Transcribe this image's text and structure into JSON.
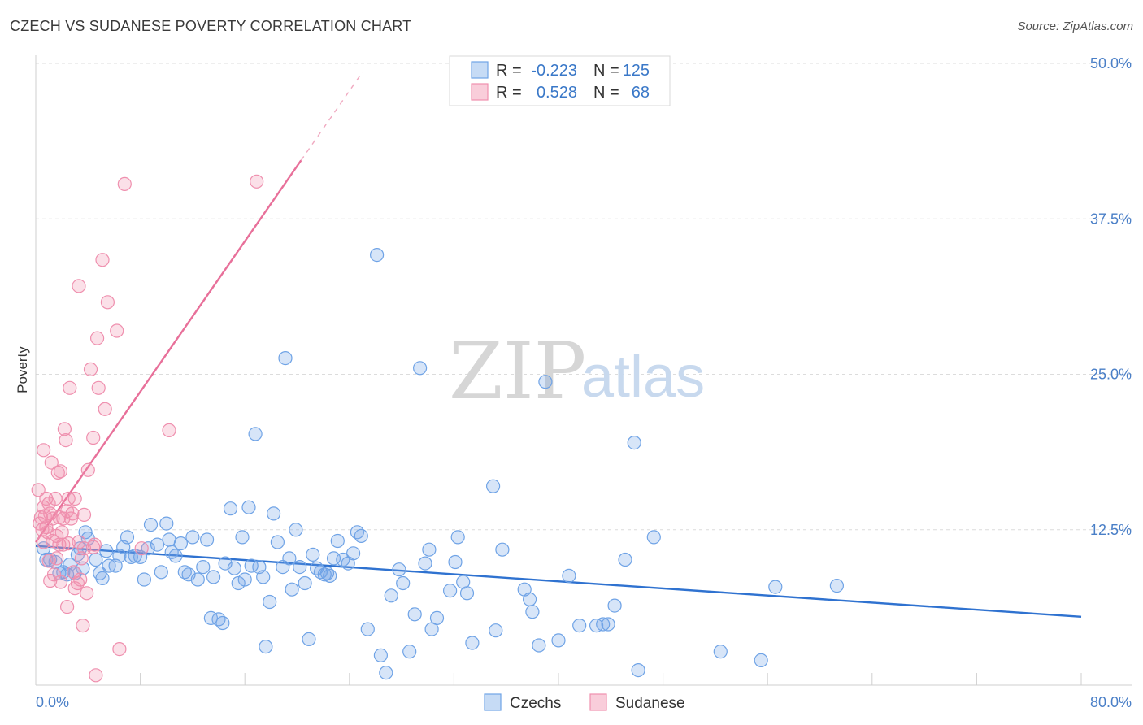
{
  "header": {
    "title": "CZECH VS SUDANESE POVERTY CORRELATION CHART",
    "source": "Source: ZipAtlas.com"
  },
  "watermark": {
    "zip": "ZIP",
    "atlas": "atlas"
  },
  "legend": {
    "rows": [
      {
        "r_label": "R =",
        "r_value": "-0.223",
        "n_label": "N =",
        "n_value": "125",
        "color": "#6fa3e6"
      },
      {
        "r_label": "R =",
        "r_value": "0.528",
        "n_label": "N =",
        "n_value": "68",
        "color": "#ef8fae"
      }
    ]
  },
  "bottom_legend": [
    {
      "label": "Czechs",
      "color": "#6fa3e6"
    },
    {
      "label": "Sudanese",
      "color": "#ef8fae"
    }
  ],
  "chart_data": {
    "type": "scatter",
    "title": "CZECH VS SUDANESE POVERTY CORRELATION CHART",
    "xlabel": "",
    "ylabel": "Poverty",
    "xlim": [
      0,
      80
    ],
    "ylim": [
      0,
      50
    ],
    "x_tick_labels": [
      "0.0%",
      "80.0%"
    ],
    "y_tick_labels": [
      "12.5%",
      "25.0%",
      "37.5%",
      "50.0%"
    ],
    "y_ticks": [
      12.5,
      25.0,
      37.5,
      50.0
    ],
    "grid": "horizontal dashed",
    "legend_position": "top-center",
    "series": [
      {
        "name": "Czechs",
        "color": "#6fa3e6",
        "trend": {
          "x": [
            0,
            80
          ],
          "y": [
            11.2,
            5.5
          ],
          "style": "solid"
        },
        "points": [
          [
            0.6,
            11.0
          ],
          [
            0.8,
            10.1
          ],
          [
            1.1,
            10.1
          ],
          [
            1.5,
            9.9
          ],
          [
            1.8,
            9.0
          ],
          [
            2.1,
            9.1
          ],
          [
            2.4,
            8.9
          ],
          [
            2.6,
            9.7
          ],
          [
            3.0,
            9.0
          ],
          [
            3.2,
            10.5
          ],
          [
            3.4,
            11.0
          ],
          [
            3.6,
            9.4
          ],
          [
            3.8,
            12.3
          ],
          [
            4.0,
            11.8
          ],
          [
            4.6,
            10.1
          ],
          [
            4.9,
            9.0
          ],
          [
            5.1,
            8.6
          ],
          [
            5.4,
            10.8
          ],
          [
            5.6,
            9.6
          ],
          [
            6.1,
            9.6
          ],
          [
            6.4,
            10.4
          ],
          [
            6.7,
            11.1
          ],
          [
            7.0,
            11.9
          ],
          [
            7.3,
            10.3
          ],
          [
            7.6,
            10.4
          ],
          [
            8.0,
            10.3
          ],
          [
            8.3,
            8.5
          ],
          [
            8.6,
            11.0
          ],
          [
            8.8,
            12.9
          ],
          [
            9.3,
            11.3
          ],
          [
            9.6,
            9.1
          ],
          [
            10.0,
            13.0
          ],
          [
            10.2,
            11.7
          ],
          [
            10.4,
            10.7
          ],
          [
            10.7,
            10.4
          ],
          [
            11.1,
            11.4
          ],
          [
            11.4,
            9.1
          ],
          [
            11.7,
            8.9
          ],
          [
            12.0,
            11.9
          ],
          [
            12.4,
            8.5
          ],
          [
            12.8,
            9.5
          ],
          [
            13.1,
            11.7
          ],
          [
            13.4,
            5.4
          ],
          [
            13.6,
            8.7
          ],
          [
            14.0,
            5.3
          ],
          [
            14.3,
            5.0
          ],
          [
            14.5,
            9.8
          ],
          [
            14.9,
            14.2
          ],
          [
            15.2,
            9.4
          ],
          [
            15.5,
            8.2
          ],
          [
            15.8,
            11.9
          ],
          [
            16.0,
            8.5
          ],
          [
            16.3,
            14.3
          ],
          [
            16.5,
            9.6
          ],
          [
            16.8,
            20.2
          ],
          [
            17.1,
            9.5
          ],
          [
            17.4,
            8.7
          ],
          [
            17.6,
            3.1
          ],
          [
            17.9,
            6.7
          ],
          [
            18.2,
            13.8
          ],
          [
            18.5,
            11.5
          ],
          [
            18.9,
            9.5
          ],
          [
            19.1,
            26.3
          ],
          [
            19.4,
            10.2
          ],
          [
            19.6,
            7.7
          ],
          [
            19.9,
            12.5
          ],
          [
            20.2,
            9.5
          ],
          [
            20.6,
            8.2
          ],
          [
            20.9,
            3.7
          ],
          [
            21.2,
            10.5
          ],
          [
            21.5,
            9.4
          ],
          [
            21.8,
            9.1
          ],
          [
            22.1,
            8.9
          ],
          [
            22.3,
            9.0
          ],
          [
            22.5,
            8.8
          ],
          [
            22.8,
            10.2
          ],
          [
            23.1,
            11.6
          ],
          [
            23.5,
            10.1
          ],
          [
            23.9,
            9.8
          ],
          [
            24.3,
            10.6
          ],
          [
            24.6,
            12.3
          ],
          [
            24.9,
            12.0
          ],
          [
            25.4,
            4.5
          ],
          [
            26.1,
            34.6
          ],
          [
            26.4,
            2.4
          ],
          [
            26.8,
            1.0
          ],
          [
            27.2,
            7.2
          ],
          [
            27.8,
            9.3
          ],
          [
            28.1,
            8.2
          ],
          [
            28.6,
            2.7
          ],
          [
            29.0,
            5.7
          ],
          [
            29.4,
            25.5
          ],
          [
            29.8,
            9.8
          ],
          [
            30.1,
            10.9
          ],
          [
            30.3,
            4.5
          ],
          [
            30.7,
            5.4
          ],
          [
            31.7,
            7.6
          ],
          [
            32.1,
            9.9
          ],
          [
            32.3,
            11.9
          ],
          [
            32.7,
            8.3
          ],
          [
            33.0,
            7.4
          ],
          [
            33.4,
            3.4
          ],
          [
            35.0,
            16.0
          ],
          [
            35.2,
            4.4
          ],
          [
            35.7,
            10.9
          ],
          [
            37.4,
            7.7
          ],
          [
            37.8,
            6.9
          ],
          [
            38.0,
            5.9
          ],
          [
            38.5,
            3.2
          ],
          [
            39.0,
            24.4
          ],
          [
            40.0,
            3.6
          ],
          [
            40.8,
            8.8
          ],
          [
            41.6,
            4.8
          ],
          [
            42.9,
            4.8
          ],
          [
            43.4,
            4.9
          ],
          [
            43.8,
            4.9
          ],
          [
            44.3,
            6.4
          ],
          [
            45.1,
            10.1
          ],
          [
            45.8,
            19.5
          ],
          [
            46.1,
            1.2
          ],
          [
            47.3,
            11.9
          ],
          [
            52.4,
            2.7
          ],
          [
            55.5,
            2.0
          ],
          [
            56.6,
            7.9
          ],
          [
            61.3,
            8.0
          ]
        ]
      },
      {
        "name": "Sudanese",
        "color": "#ef8fae",
        "trend": {
          "x": [
            0,
            20.3
          ],
          "y": [
            11.5,
            42.2
          ],
          "style": "solid",
          "extension": {
            "x": [
              20.3,
              25
            ],
            "y": [
              42.2,
              49.3
            ],
            "style": "dashed"
          }
        },
        "points": [
          [
            0.2,
            15.7
          ],
          [
            0.3,
            13.0
          ],
          [
            0.4,
            13.5
          ],
          [
            0.5,
            12.5
          ],
          [
            0.6,
            11.5
          ],
          [
            0.6,
            14.3
          ],
          [
            0.7,
            13.6
          ],
          [
            0.8,
            12.7
          ],
          [
            0.6,
            18.9
          ],
          [
            0.8,
            15.0
          ],
          [
            0.9,
            12.3
          ],
          [
            1.0,
            10.0
          ],
          [
            1.0,
            14.6
          ],
          [
            1.1,
            13.8
          ],
          [
            1.1,
            8.4
          ],
          [
            1.2,
            17.9
          ],
          [
            1.3,
            11.6
          ],
          [
            1.3,
            13.4
          ],
          [
            1.4,
            8.9
          ],
          [
            1.5,
            15.0
          ],
          [
            1.6,
            12.0
          ],
          [
            1.6,
            10.2
          ],
          [
            1.7,
            17.1
          ],
          [
            1.8,
            13.5
          ],
          [
            1.8,
            11.3
          ],
          [
            1.9,
            8.3
          ],
          [
            1.9,
            17.2
          ],
          [
            2.0,
            12.3
          ],
          [
            2.1,
            11.3
          ],
          [
            2.1,
            13.4
          ],
          [
            2.2,
            20.6
          ],
          [
            2.3,
            19.7
          ],
          [
            2.4,
            14.0
          ],
          [
            2.4,
            6.3
          ],
          [
            2.5,
            15.0
          ],
          [
            2.5,
            11.4
          ],
          [
            2.6,
            23.9
          ],
          [
            2.7,
            13.4
          ],
          [
            2.8,
            13.8
          ],
          [
            2.9,
            9.1
          ],
          [
            3.0,
            7.8
          ],
          [
            3.0,
            15.0
          ],
          [
            3.2,
            8.2
          ],
          [
            3.3,
            11.5
          ],
          [
            3.3,
            32.1
          ],
          [
            3.4,
            8.5
          ],
          [
            3.5,
            10.2
          ],
          [
            3.6,
            4.8
          ],
          [
            3.7,
            13.7
          ],
          [
            3.7,
            11.0
          ],
          [
            3.9,
            7.4
          ],
          [
            4.0,
            17.3
          ],
          [
            4.2,
            25.4
          ],
          [
            4.4,
            19.9
          ],
          [
            4.5,
            11.3
          ],
          [
            4.4,
            11.1
          ],
          [
            4.6,
            0.8
          ],
          [
            4.7,
            27.9
          ],
          [
            4.8,
            23.9
          ],
          [
            5.1,
            34.2
          ],
          [
            5.3,
            22.2
          ],
          [
            5.5,
            30.8
          ],
          [
            6.2,
            28.5
          ],
          [
            6.4,
            2.9
          ],
          [
            6.8,
            40.3
          ],
          [
            8.1,
            11.0
          ],
          [
            10.2,
            20.5
          ],
          [
            16.9,
            40.5
          ]
        ]
      }
    ]
  }
}
